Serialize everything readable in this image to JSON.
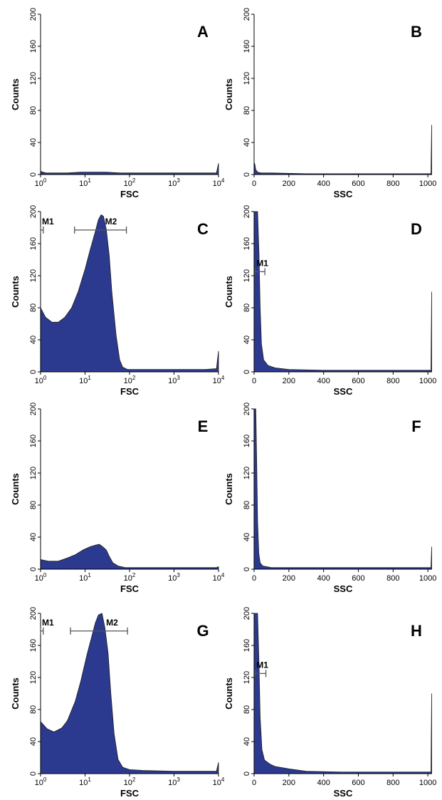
{
  "colors": {
    "fill": "#2b3a8f",
    "edge": "#1a1a1a",
    "axis": "#000000",
    "marker": "#555555"
  },
  "chart_data": [
    {
      "panel": "A",
      "type": "area",
      "xscale": "log",
      "xlabel": "FSC",
      "ylabel": "Counts",
      "xlim": [
        1,
        10000
      ],
      "ylim": [
        0,
        200
      ],
      "xticks": [
        [
          "10",
          "0"
        ],
        [
          "10",
          "1"
        ],
        [
          "10",
          "2"
        ],
        [
          "10",
          "3"
        ],
        [
          "10",
          "4"
        ]
      ],
      "yticks": [
        "0",
        "40",
        "80",
        "120",
        "160",
        "200"
      ],
      "points": [
        [
          1,
          4
        ],
        [
          1.3,
          2
        ],
        [
          2,
          2
        ],
        [
          4,
          2
        ],
        [
          8,
          3
        ],
        [
          15,
          3
        ],
        [
          30,
          3
        ],
        [
          60,
          2
        ],
        [
          100,
          2
        ],
        [
          300,
          2
        ],
        [
          1000,
          2
        ],
        [
          3000,
          2
        ],
        [
          9000,
          2
        ],
        [
          10000,
          14
        ]
      ],
      "markers": []
    },
    {
      "panel": "B",
      "type": "area",
      "xscale": "linear",
      "xlabel": "SSC",
      "ylabel": "Counts",
      "xlim": [
        0,
        1024
      ],
      "ylim": [
        0,
        200
      ],
      "xticks": [
        "0",
        "200",
        "400",
        "600",
        "800",
        "1000"
      ],
      "yticks": [
        "0",
        "40",
        "80",
        "120",
        "160",
        "200"
      ],
      "points": [
        [
          0,
          15
        ],
        [
          4,
          13
        ],
        [
          10,
          6
        ],
        [
          20,
          3
        ],
        [
          40,
          2
        ],
        [
          100,
          2
        ],
        [
          300,
          1
        ],
        [
          600,
          1
        ],
        [
          1000,
          1
        ],
        [
          1018,
          1
        ],
        [
          1022,
          62
        ]
      ],
      "markers": []
    },
    {
      "panel": "C",
      "type": "area",
      "xscale": "log",
      "xlabel": "FSC",
      "ylabel": "Counts",
      "xlim": [
        1,
        10000
      ],
      "ylim": [
        0,
        200
      ],
      "xticks": [
        [
          "10",
          "0"
        ],
        [
          "10",
          "1"
        ],
        [
          "10",
          "2"
        ],
        [
          "10",
          "3"
        ],
        [
          "10",
          "4"
        ]
      ],
      "yticks": [
        "0",
        "40",
        "80",
        "120",
        "160",
        "200"
      ],
      "points": [
        [
          1,
          80
        ],
        [
          1.3,
          68
        ],
        [
          1.8,
          62
        ],
        [
          2.5,
          62
        ],
        [
          3.5,
          68
        ],
        [
          5,
          80
        ],
        [
          7,
          100
        ],
        [
          10,
          128
        ],
        [
          13,
          152
        ],
        [
          17,
          175
        ],
        [
          20,
          190
        ],
        [
          23,
          196
        ],
        [
          26,
          194
        ],
        [
          30,
          178
        ],
        [
          35,
          145
        ],
        [
          40,
          100
        ],
        [
          50,
          45
        ],
        [
          60,
          15
        ],
        [
          70,
          6
        ],
        [
          90,
          3
        ],
        [
          200,
          3
        ],
        [
          1000,
          3
        ],
        [
          5000,
          3
        ],
        [
          9000,
          4
        ],
        [
          10000,
          26
        ]
      ],
      "markers": [
        {
          "label": "M1",
          "x1": 1,
          "x2": 1.15,
          "y": 177
        },
        {
          "label": "M2",
          "x1": 5.8,
          "x2": 85,
          "y": 177
        }
      ]
    },
    {
      "panel": "D",
      "type": "area",
      "xscale": "linear",
      "xlabel": "SSC",
      "ylabel": "Counts",
      "xlim": [
        0,
        1024
      ],
      "ylim": [
        0,
        200
      ],
      "xticks": [
        "0",
        "200",
        "400",
        "600",
        "800",
        "1000"
      ],
      "yticks": [
        "0",
        "40",
        "80",
        "120",
        "160",
        "200"
      ],
      "points": [
        [
          0,
          200
        ],
        [
          20,
          200
        ],
        [
          28,
          150
        ],
        [
          35,
          80
        ],
        [
          42,
          35
        ],
        [
          55,
          15
        ],
        [
          80,
          8
        ],
        [
          120,
          5
        ],
        [
          200,
          3
        ],
        [
          400,
          2
        ],
        [
          700,
          2
        ],
        [
          1000,
          2
        ],
        [
          1018,
          2
        ],
        [
          1022,
          100
        ]
      ],
      "markers": [
        {
          "label": "M1",
          "x1": 5,
          "x2": 62,
          "y": 125
        }
      ]
    },
    {
      "panel": "E",
      "type": "area",
      "xscale": "log",
      "xlabel": "FSC",
      "ylabel": "Counts",
      "xlim": [
        1,
        10000
      ],
      "ylim": [
        0,
        200
      ],
      "xticks": [
        [
          "10",
          "0"
        ],
        [
          "10",
          "1"
        ],
        [
          "10",
          "2"
        ],
        [
          "10",
          "3"
        ],
        [
          "10",
          "4"
        ]
      ],
      "yticks": [
        "0",
        "40",
        "80",
        "120",
        "160",
        "200"
      ],
      "points": [
        [
          1,
          12
        ],
        [
          1.5,
          10
        ],
        [
          2.5,
          10
        ],
        [
          4,
          14
        ],
        [
          6,
          18
        ],
        [
          9,
          24
        ],
        [
          13,
          28
        ],
        [
          17,
          30
        ],
        [
          21,
          31
        ],
        [
          25,
          28
        ],
        [
          30,
          24
        ],
        [
          35,
          16
        ],
        [
          42,
          8
        ],
        [
          55,
          4
        ],
        [
          80,
          2
        ],
        [
          200,
          2
        ],
        [
          1000,
          2
        ],
        [
          9000,
          2
        ],
        [
          10000,
          3
        ]
      ],
      "markers": []
    },
    {
      "panel": "F",
      "type": "area",
      "xscale": "linear",
      "xlabel": "SSC",
      "ylabel": "Counts",
      "xlim": [
        0,
        1024
      ],
      "ylim": [
        0,
        200
      ],
      "xticks": [
        "0",
        "200",
        "400",
        "600",
        "800",
        "1000"
      ],
      "yticks": [
        "0",
        "40",
        "80",
        "120",
        "160",
        "200"
      ],
      "points": [
        [
          0,
          200
        ],
        [
          10,
          200
        ],
        [
          15,
          130
        ],
        [
          20,
          60
        ],
        [
          27,
          20
        ],
        [
          35,
          8
        ],
        [
          50,
          4
        ],
        [
          100,
          2
        ],
        [
          300,
          2
        ],
        [
          800,
          2
        ],
        [
          1018,
          2
        ],
        [
          1022,
          28
        ]
      ],
      "markers": []
    },
    {
      "panel": "G",
      "type": "area",
      "xscale": "log",
      "xlabel": "FSC",
      "ylabel": "Counts",
      "xlim": [
        1,
        10000
      ],
      "ylim": [
        0,
        200
      ],
      "xticks": [
        [
          "10",
          "0"
        ],
        [
          "10",
          "1"
        ],
        [
          "10",
          "2"
        ],
        [
          "10",
          "3"
        ],
        [
          "10",
          "4"
        ]
      ],
      "yticks": [
        "0",
        "40",
        "80",
        "120",
        "160",
        "200"
      ],
      "points": [
        [
          1,
          65
        ],
        [
          1.4,
          56
        ],
        [
          2,
          52
        ],
        [
          3,
          57
        ],
        [
          4,
          66
        ],
        [
          6,
          90
        ],
        [
          8,
          115
        ],
        [
          11,
          148
        ],
        [
          14,
          170
        ],
        [
          17,
          188
        ],
        [
          20,
          198
        ],
        [
          24,
          200
        ],
        [
          28,
          182
        ],
        [
          33,
          150
        ],
        [
          38,
          100
        ],
        [
          45,
          50
        ],
        [
          55,
          18
        ],
        [
          70,
          8
        ],
        [
          100,
          5
        ],
        [
          200,
          4
        ],
        [
          1000,
          3
        ],
        [
          5000,
          3
        ],
        [
          9000,
          3
        ],
        [
          10000,
          14
        ]
      ],
      "markers": [
        {
          "label": "M1",
          "x1": 1,
          "x2": 1.15,
          "y": 178
        },
        {
          "label": "M2",
          "x1": 4.7,
          "x2": 90,
          "y": 178
        }
      ]
    },
    {
      "panel": "H",
      "type": "area",
      "xscale": "linear",
      "xlabel": "SSC",
      "ylabel": "Counts",
      "xlim": [
        0,
        1024
      ],
      "ylim": [
        0,
        200
      ],
      "xticks": [
        "0",
        "200",
        "400",
        "600",
        "800",
        "1000"
      ],
      "yticks": [
        "0",
        "40",
        "80",
        "120",
        "160",
        "200"
      ],
      "points": [
        [
          0,
          200
        ],
        [
          20,
          200
        ],
        [
          28,
          140
        ],
        [
          35,
          70
        ],
        [
          45,
          30
        ],
        [
          60,
          17
        ],
        [
          90,
          12
        ],
        [
          120,
          9
        ],
        [
          200,
          6
        ],
        [
          300,
          3
        ],
        [
          500,
          2
        ],
        [
          800,
          2
        ],
        [
          1018,
          2
        ],
        [
          1022,
          100
        ]
      ],
      "markers": [
        {
          "label": "M1",
          "x1": 5,
          "x2": 68,
          "y": 125
        }
      ]
    }
  ]
}
